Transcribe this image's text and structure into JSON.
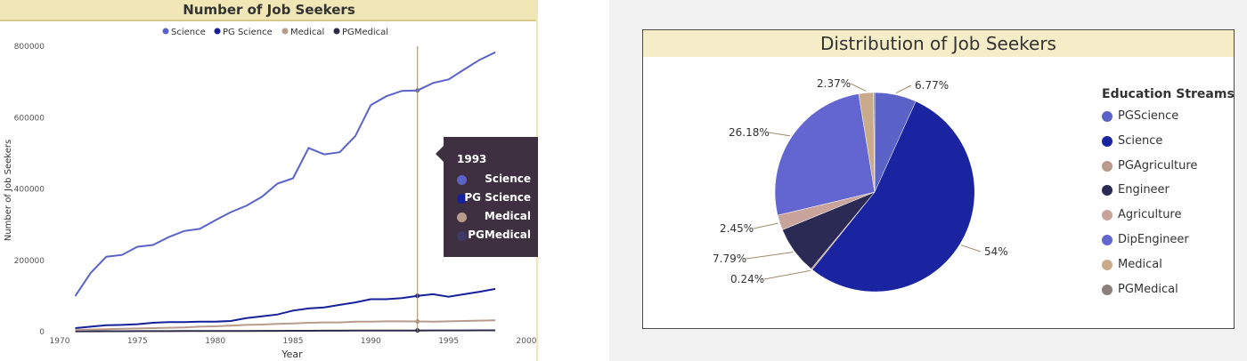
{
  "chart_data": [
    {
      "type": "line",
      "title": "Number of Job Seekers",
      "xlabel": "Year",
      "ylabel": "Number of Job Seekers",
      "xlim": [
        1970,
        2000
      ],
      "ylim": [
        0,
        800000
      ],
      "x_ticks": [
        "1970",
        "1975",
        "1980",
        "1985",
        "1990",
        "1995",
        "2000"
      ],
      "y_ticks": [
        "0",
        "200000",
        "400000",
        "600000",
        "800000"
      ],
      "legend_position": "top-center",
      "x": [
        1971,
        1972,
        1973,
        1974,
        1975,
        1976,
        1977,
        1978,
        1979,
        1980,
        1981,
        1982,
        1983,
        1984,
        1985,
        1986,
        1987,
        1988,
        1989,
        1990,
        1991,
        1992,
        1993,
        1994,
        1995,
        1996,
        1997,
        1998
      ],
      "series": [
        {
          "name": "Science",
          "color": "#5b63c9",
          "values": [
            100000,
            165000,
            210000,
            215000,
            238000,
            243000,
            265000,
            282000,
            288000,
            312000,
            335000,
            353000,
            378000,
            415000,
            430000,
            515000,
            497000,
            503000,
            548000,
            635000,
            660000,
            675000,
            676099,
            697000,
            707000,
            735000,
            762000,
            783000
          ]
        },
        {
          "name": "PG Science",
          "color": "#16209a",
          "values": [
            10000,
            14000,
            18000,
            19000,
            21000,
            25000,
            27000,
            27000,
            28000,
            28000,
            30000,
            38000,
            43000,
            48000,
            59000,
            65000,
            68000,
            75000,
            82000,
            91000,
            91000,
            94000,
            100249,
            105000,
            98000,
            105000,
            112000,
            120000
          ]
        },
        {
          "name": "Medical",
          "color": "#b89b8c",
          "values": [
            5000,
            6000,
            7000,
            8000,
            9000,
            10000,
            11000,
            12000,
            14000,
            15000,
            17000,
            19000,
            20000,
            22000,
            23000,
            25000,
            26000,
            26000,
            28000,
            28000,
            29000,
            29000,
            28560,
            28000,
            29000,
            30000,
            31000,
            32000
          ]
        },
        {
          "name": "PGMedical",
          "color": "#2b2a48",
          "values": [
            1000,
            1100,
            1200,
            1300,
            1400,
            1500,
            1600,
            1700,
            1800,
            1900,
            2000,
            2100,
            2200,
            2300,
            2400,
            2600,
            2700,
            2800,
            2900,
            3000,
            3100,
            3200,
            3334,
            3400,
            3500,
            3600,
            3700,
            3800
          ]
        }
      ],
      "tooltip": {
        "year": "1993",
        "rows": [
          {
            "name": "Science",
            "value": "676099",
            "color": "#5b63c9"
          },
          {
            "name": "PG Science",
            "value": "100249",
            "color": "#16209a"
          },
          {
            "name": "Medical",
            "value": "28560",
            "color": "#b89b8c"
          },
          {
            "name": "PGMedical",
            "value": "3334",
            "color": "#3e3a66"
          }
        ]
      },
      "highlight_x": 1993
    },
    {
      "type": "pie",
      "title": "Distribution of Job Seekers",
      "legend_title": "Education Streams",
      "legend_position": "right",
      "slices": [
        {
          "name": "PGScience",
          "value": 6.77,
          "label": "6.77%",
          "color": "#5b63c9"
        },
        {
          "name": "Science",
          "value": 54.0,
          "label": "54%",
          "color": "#1a24a0"
        },
        {
          "name": "PGAgriculture",
          "value": 0.24,
          "label": "0.24%",
          "color": "#b89b8c"
        },
        {
          "name": "Engineer",
          "value": 7.79,
          "label": "7.79%",
          "color": "#2b2a55"
        },
        {
          "name": "Agriculture",
          "value": 2.45,
          "label": "2.45%",
          "color": "#c8a49c"
        },
        {
          "name": "DipEngineer",
          "value": 26.18,
          "label": "26.18%",
          "color": "#6366d0"
        },
        {
          "name": "Medical",
          "value": 2.37,
          "label": "2.37%",
          "color": "#c9aa8a"
        },
        {
          "name": "PGMedical",
          "value": 0.2,
          "label": "",
          "color": "#8a7f7a"
        }
      ]
    }
  ]
}
